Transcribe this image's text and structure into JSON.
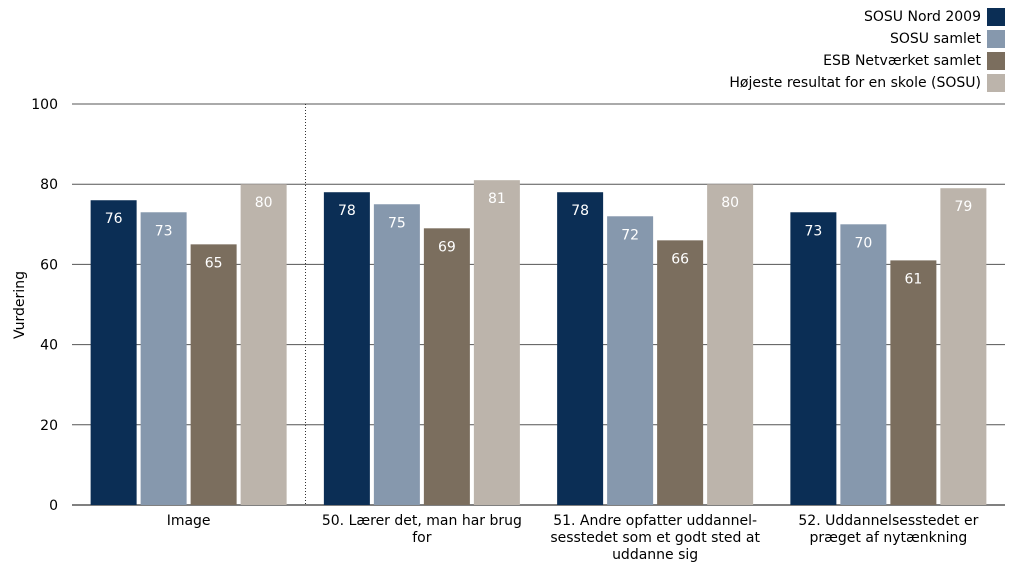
{
  "chart_data": {
    "type": "bar",
    "categories": [
      [
        "Image"
      ],
      [
        "50. Lærer det, man har brug",
        "for"
      ],
      [
        "51. Andre opfatter uddannel-",
        "sesstedet som et godt sted at",
        "uddanne sig"
      ],
      [
        "52. Uddannelsesstedet er",
        "præget af nytænkning"
      ]
    ],
    "series": [
      {
        "name": "SOSU Nord 2009",
        "color": "#0b2e55",
        "values": [
          76,
          78,
          78,
          73
        ]
      },
      {
        "name": "SOSU samlet",
        "color": "#8698ad",
        "values": [
          73,
          75,
          72,
          70
        ]
      },
      {
        "name": "ESB Netværket samlet",
        "color": "#7b6e5e",
        "values": [
          65,
          69,
          66,
          61
        ]
      },
      {
        "name": "Højeste resultat for en skole (SOSU)",
        "color": "#bcb4ab",
        "values": [
          80,
          81,
          80,
          79
        ]
      }
    ],
    "ylabel": "Vurdering",
    "ylim": [
      0,
      100
    ],
    "yticks": [
      0,
      20,
      40,
      60,
      80,
      100
    ],
    "grid": true,
    "legend_position": "top-right",
    "separator_after_category": 0
  }
}
